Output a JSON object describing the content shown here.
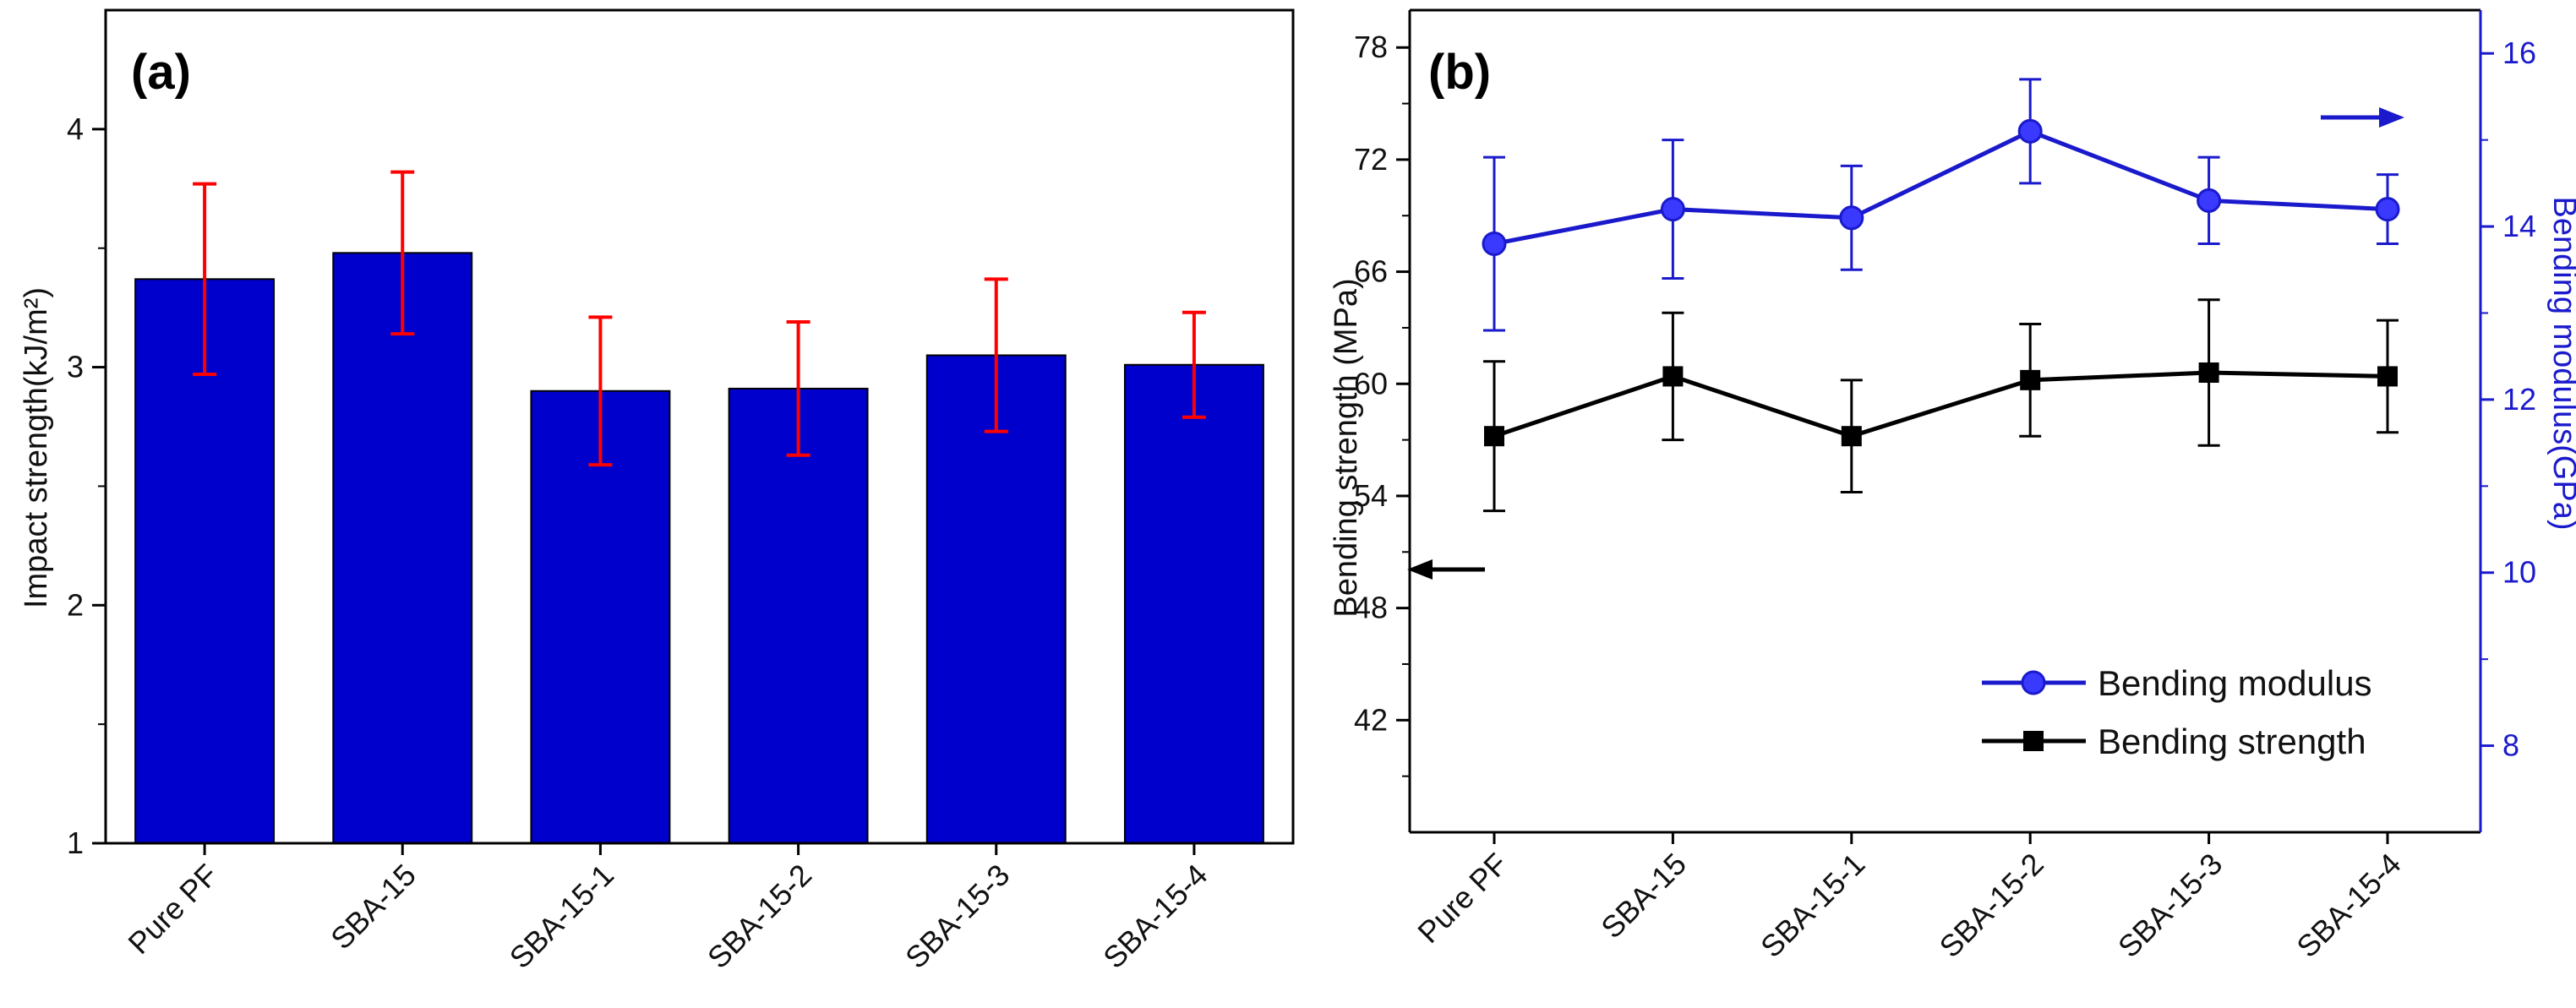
{
  "chart_data": [
    {
      "type": "bar",
      "panel_label": "(a)",
      "categories": [
        "Pure PF",
        "SBA-15",
        "SBA-15-1",
        "SBA-15-2",
        "SBA-15-3",
        "SBA-15-4"
      ],
      "values": [
        3.37,
        3.48,
        2.9,
        2.91,
        3.05,
        3.01
      ],
      "errors": [
        0.4,
        0.34,
        0.31,
        0.28,
        0.32,
        0.22
      ],
      "ylabel": "Impact strength(kJ/m²)",
      "ylim": [
        1,
        4.5
      ],
      "yticks": [
        "1",
        "2",
        "3",
        "4"
      ],
      "ytick_values": [
        1,
        2,
        3,
        4
      ],
      "bar_color": "#0000cc",
      "error_color": "#ff0000"
    },
    {
      "type": "line",
      "panel_label": "(b)",
      "categories": [
        "Pure PF",
        "SBA-15",
        "SBA-15-1",
        "SBA-15-2",
        "SBA-15-3",
        "SBA-15-4"
      ],
      "series": [
        {
          "name": "Bending modulus",
          "axis": "right",
          "values": [
            13.8,
            14.2,
            14.1,
            15.1,
            14.3,
            14.2
          ],
          "errors": [
            1.0,
            0.8,
            0.6,
            0.6,
            0.5,
            0.4
          ],
          "color": "#1a1acc",
          "marker": "circle"
        },
        {
          "name": "Bending strength",
          "axis": "left",
          "values": [
            57.2,
            60.4,
            57.2,
            60.2,
            60.6,
            60.4
          ],
          "errors": [
            4.0,
            3.4,
            3.0,
            3.0,
            3.9,
            3.0
          ],
          "color": "#000000",
          "marker": "square"
        }
      ],
      "ylabel_left": "Bending strength (MPa)",
      "ylabel_right": "Bending modulus(GPa)",
      "ylim_left": [
        36,
        80
      ],
      "ylim_right": [
        7,
        16.5
      ],
      "yticks_left": [
        "42",
        "48",
        "54",
        "60",
        "66",
        "72",
        "78"
      ],
      "yticks_left_values": [
        42,
        48,
        54,
        60,
        66,
        72,
        78
      ],
      "yticks_right": [
        "8",
        "10",
        "12",
        "14",
        "16"
      ],
      "yticks_right_values": [
        8,
        10,
        12,
        14,
        16
      ],
      "right_axis_color": "#1a1acc",
      "legend_position": "bottom-right"
    }
  ]
}
